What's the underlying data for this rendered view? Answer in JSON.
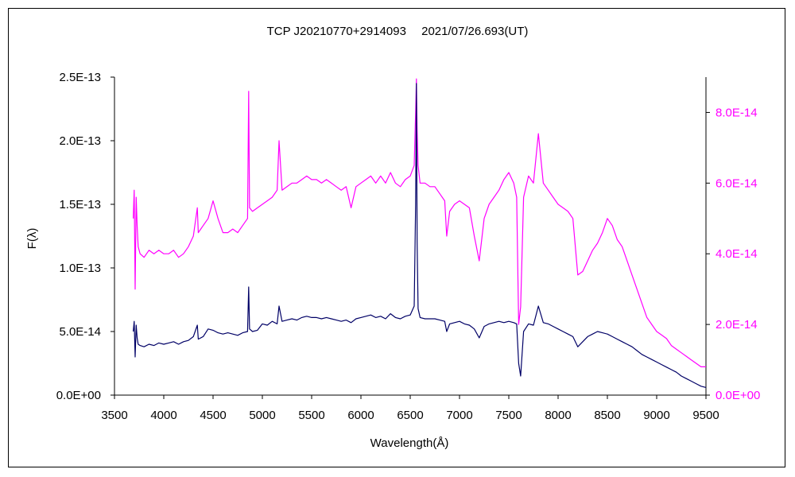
{
  "chart_data": {
    "type": "line",
    "title": "TCP J20210770+2914093　 2021/07/26.693(UT)",
    "xlabel": "Wavelength(Å)",
    "ylabel": "F(λ)",
    "xlim": [
      3500,
      9500
    ],
    "x_ticks": [
      3500,
      4000,
      4500,
      5000,
      5500,
      6000,
      6500,
      7000,
      7500,
      8000,
      8500,
      9000,
      9500
    ],
    "y_left": {
      "lim": [
        0,
        2.5e-13
      ],
      "ticks": [
        0,
        5e-14,
        1e-13,
        1.5e-13,
        2e-13,
        2.5e-13
      ],
      "tick_labels": [
        "0.0E+00",
        "5.0E-14",
        "1.0E-13",
        "1.5E-13",
        "2.0E-13",
        "2.5E-13"
      ]
    },
    "y_right": {
      "lim": [
        0,
        9e-14
      ],
      "ticks": [
        0,
        2e-14,
        4e-14,
        6e-14,
        8e-14
      ],
      "tick_labels": [
        "0.0E+00",
        "2.0E-14",
        "4.0E-14",
        "6.0E-14",
        "8.0E-14"
      ]
    },
    "grid": false,
    "legend": "none",
    "series": [
      {
        "axis": "left",
        "color": "#000066",
        "x": [
          3690,
          3700,
          3710,
          3720,
          3730,
          3740,
          3760,
          3800,
          3850,
          3900,
          3950,
          4000,
          4050,
          4100,
          4150,
          4200,
          4250,
          4300,
          4340,
          4350,
          4400,
          4450,
          4500,
          4550,
          4600,
          4650,
          4700,
          4750,
          4800,
          4850,
          4861,
          4870,
          4900,
          4950,
          5000,
          5050,
          5100,
          5150,
          5169,
          5200,
          5250,
          5300,
          5350,
          5400,
          5450,
          5500,
          5550,
          5600,
          5650,
          5700,
          5750,
          5800,
          5850,
          5900,
          5950,
          6000,
          6050,
          6100,
          6150,
          6200,
          6250,
          6300,
          6350,
          6400,
          6450,
          6500,
          6540,
          6555,
          6563,
          6570,
          6580,
          6600,
          6650,
          6700,
          6750,
          6800,
          6850,
          6870,
          6900,
          6950,
          7000,
          7050,
          7100,
          7150,
          7200,
          7250,
          7300,
          7350,
          7400,
          7450,
          7500,
          7550,
          7580,
          7600,
          7620,
          7650,
          7700,
          7750,
          7800,
          7850,
          7900,
          7950,
          8000,
          8050,
          8100,
          8150,
          8200,
          8250,
          8300,
          8350,
          8400,
          8450,
          8500,
          8550,
          8600,
          8650,
          8700,
          8750,
          8800,
          8850,
          8900,
          8950,
          9000,
          9050,
          9100,
          9150,
          9200,
          9250,
          9300,
          9350,
          9400,
          9450,
          9500
        ],
        "y": [
          5e-14,
          5.8e-14,
          3e-14,
          5.5e-14,
          4.5e-14,
          4e-14,
          3.9e-14,
          3.8e-14,
          4e-14,
          3.9e-14,
          4.1e-14,
          4e-14,
          4.1e-14,
          4.2e-14,
          4e-14,
          4.2e-14,
          4.3e-14,
          4.6e-14,
          5.5e-14,
          4.4e-14,
          4.6e-14,
          5.2e-14,
          5.1e-14,
          4.9e-14,
          4.8e-14,
          4.9e-14,
          4.8e-14,
          4.7e-14,
          4.9e-14,
          5e-14,
          8.5e-14,
          5.2e-14,
          5e-14,
          5.1e-14,
          5.6e-14,
          5.5e-14,
          5.8e-14,
          5.6e-14,
          7e-14,
          5.8e-14,
          5.9e-14,
          6e-14,
          5.9e-14,
          6.1e-14,
          6.2e-14,
          6.1e-14,
          6.1e-14,
          6e-14,
          6.1e-14,
          6e-14,
          5.9e-14,
          5.8e-14,
          5.9e-14,
          5.7e-14,
          6e-14,
          6.1e-14,
          6.2e-14,
          6.3e-14,
          6.1e-14,
          6.2e-14,
          6e-14,
          6.4e-14,
          6.1e-14,
          6e-14,
          6.2e-14,
          6.3e-14,
          7e-14,
          1.5e-13,
          2.45e-13,
          1.2e-13,
          6.8e-14,
          6.1e-14,
          6e-14,
          6e-14,
          6e-14,
          5.9e-14,
          5.8e-14,
          5e-14,
          5.6e-14,
          5.7e-14,
          5.8e-14,
          5.6e-14,
          5.5e-14,
          5.2e-14,
          4.5e-14,
          5.4e-14,
          5.6e-14,
          5.7e-14,
          5.8e-14,
          5.7e-14,
          5.8e-14,
          5.7e-14,
          5.6e-14,
          2.5e-14,
          1.5e-14,
          5e-14,
          5.6e-14,
          5.5e-14,
          7e-14,
          5.7e-14,
          5.6e-14,
          5.4e-14,
          5.2e-14,
          5e-14,
          4.8e-14,
          4.6e-14,
          3.8e-14,
          4.2e-14,
          4.6e-14,
          4.8e-14,
          5e-14,
          4.9e-14,
          4.8e-14,
          4.6e-14,
          4.4e-14,
          4.2e-14,
          4e-14,
          3.8e-14,
          3.5e-14,
          3.2e-14,
          3e-14,
          2.8e-14,
          2.6e-14,
          2.4e-14,
          2.2e-14,
          2e-14,
          1.8e-14,
          1.5e-14,
          1.3e-14,
          1.1e-14,
          9e-15,
          7e-15,
          6e-15
        ]
      },
      {
        "axis": "right",
        "color": "#ff00ff",
        "x": [
          3690,
          3700,
          3710,
          3720,
          3730,
          3740,
          3760,
          3800,
          3850,
          3900,
          3950,
          4000,
          4050,
          4100,
          4150,
          4200,
          4250,
          4300,
          4340,
          4350,
          4400,
          4450,
          4500,
          4550,
          4600,
          4650,
          4700,
          4750,
          4800,
          4850,
          4861,
          4870,
          4900,
          4950,
          5000,
          5050,
          5100,
          5150,
          5169,
          5200,
          5250,
          5300,
          5350,
          5400,
          5450,
          5500,
          5550,
          5600,
          5650,
          5700,
          5750,
          5800,
          5850,
          5900,
          5950,
          6000,
          6050,
          6100,
          6150,
          6200,
          6250,
          6300,
          6350,
          6400,
          6450,
          6500,
          6540,
          6555,
          6563,
          6570,
          6580,
          6600,
          6650,
          6700,
          6750,
          6800,
          6850,
          6870,
          6900,
          6950,
          7000,
          7050,
          7100,
          7150,
          7200,
          7250,
          7300,
          7350,
          7400,
          7450,
          7500,
          7550,
          7580,
          7600,
          7620,
          7650,
          7700,
          7750,
          7800,
          7850,
          7900,
          7950,
          8000,
          8050,
          8100,
          8150,
          8200,
          8250,
          8300,
          8350,
          8400,
          8450,
          8500,
          8550,
          8600,
          8650,
          8700,
          8750,
          8800,
          8850,
          8900,
          8950,
          9000,
          9050,
          9100,
          9150,
          9200,
          9250,
          9300,
          9350,
          9400,
          9450,
          9500
        ],
        "y": [
          5e-14,
          5.8e-14,
          3e-14,
          5.6e-14,
          4.8e-14,
          4.2e-14,
          4e-14,
          3.9e-14,
          4.1e-14,
          4e-14,
          4.1e-14,
          4e-14,
          4e-14,
          4.1e-14,
          3.9e-14,
          4e-14,
          4.2e-14,
          4.5e-14,
          5.3e-14,
          4.6e-14,
          4.8e-14,
          5e-14,
          5.5e-14,
          5e-14,
          4.6e-14,
          4.6e-14,
          4.7e-14,
          4.6e-14,
          4.8e-14,
          5e-14,
          8.6e-14,
          5.3e-14,
          5.2e-14,
          5.3e-14,
          5.4e-14,
          5.5e-14,
          5.6e-14,
          5.8e-14,
          7.2e-14,
          5.8e-14,
          5.9e-14,
          6e-14,
          6e-14,
          6.1e-14,
          6.2e-14,
          6.1e-14,
          6.1e-14,
          6e-14,
          6.1e-14,
          6e-14,
          5.9e-14,
          5.8e-14,
          5.9e-14,
          5.3e-14,
          5.9e-14,
          6e-14,
          6.1e-14,
          6.2e-14,
          6e-14,
          6.2e-14,
          6e-14,
          6.3e-14,
          6e-14,
          5.9e-14,
          6.1e-14,
          6.2e-14,
          6.5e-14,
          8e-14,
          8.95e-14,
          7.5e-14,
          6.5e-14,
          6e-14,
          6e-14,
          5.9e-14,
          5.9e-14,
          5.7e-14,
          5.5e-14,
          4.5e-14,
          5.2e-14,
          5.4e-14,
          5.5e-14,
          5.4e-14,
          5.3e-14,
          4.5e-14,
          3.8e-14,
          5e-14,
          5.4e-14,
          5.6e-14,
          5.8e-14,
          6.1e-14,
          6.3e-14,
          6e-14,
          5.6e-14,
          2e-14,
          2.5e-14,
          5.6e-14,
          6.2e-14,
          6e-14,
          7.4e-14,
          6e-14,
          5.8e-14,
          5.6e-14,
          5.4e-14,
          5.3e-14,
          5.2e-14,
          5e-14,
          3.4e-14,
          3.5e-14,
          3.8e-14,
          4.1e-14,
          4.3e-14,
          4.6e-14,
          5e-14,
          4.8e-14,
          4.4e-14,
          4.2e-14,
          3.8e-14,
          3.4e-14,
          3e-14,
          2.6e-14,
          2.2e-14,
          2e-14,
          1.8e-14,
          1.7e-14,
          1.6e-14,
          1.4e-14,
          1.3e-14,
          1.2e-14,
          1.1e-14,
          1e-14,
          9e-15,
          8e-15,
          8e-15
        ]
      }
    ]
  }
}
